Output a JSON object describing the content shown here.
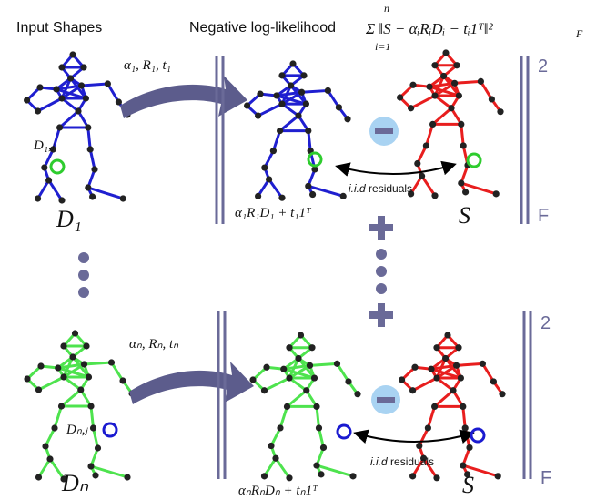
{
  "header": {
    "input_shapes": "Input Shapes",
    "nll": "Negative log-likelihood",
    "formula_top": "n",
    "formula_main": "Σ ‖S − αᵢRᵢDᵢ − tᵢ1ᵀ‖²",
    "formula_sub": "i=1",
    "formula_F": "F"
  },
  "row1": {
    "transform_label": "α₁, R₁, t₁",
    "point_label": "D₁,ⱼ",
    "shape_label": "D₁",
    "aligned_label": "α₁R₁D₁ + t₁1ᵀ",
    "target_label": "S",
    "residuals_iid": "i.i.d",
    "residuals_word": "residuals",
    "norm_sup": "2",
    "norm_sub": "F"
  },
  "rowN": {
    "transform_label": "αₙ, Rₙ, tₙ",
    "point_label": "Dₙ,ⱼ",
    "shape_label": "Dₙ",
    "aligned_label": "αₙRₙDₙ + tₙ1ᵀ",
    "target_label": "S",
    "residuals_iid": "i.i.d",
    "residuals_word": "residuals",
    "norm_sup": "2",
    "norm_sub": "F"
  },
  "colors": {
    "skeleton_1": "#1f1fd0",
    "skeleton_n": "#4ee34e",
    "target": "#e81e1e",
    "arrow": "#5c5c8c",
    "minus_circle": "#a9d3f2",
    "norm_bars": "#6a6a98",
    "highlight_1": "#2ecc2e",
    "highlight_n": "#1a1ad0"
  }
}
